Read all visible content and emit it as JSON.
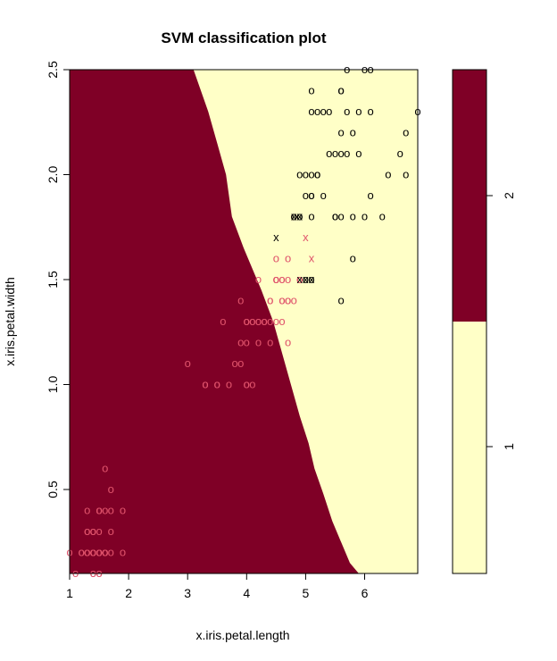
{
  "chart_data": {
    "type": "scatter",
    "title": "SVM classification plot",
    "xlabel": "x.iris.petal.length",
    "ylabel": "x.iris.petal.width",
    "xlim": [
      1.0,
      6.9
    ],
    "ylim": [
      0.1,
      2.5
    ],
    "x_ticks": [
      "1",
      "2",
      "3",
      "4",
      "5",
      "6"
    ],
    "y_ticks": [
      "0.5",
      "1.0",
      "1.5",
      "2.0",
      "2.5"
    ],
    "grid": false,
    "colors": {
      "class_2_region": "#7f0026",
      "class_1_region": "#ffffc7",
      "class_2_points": "#df536b",
      "class_1_points": "#000000"
    },
    "decision_boundary": [
      [
        3.1,
        2.5
      ],
      [
        3.35,
        2.3
      ],
      [
        3.5,
        2.15
      ],
      [
        3.65,
        2.0
      ],
      [
        3.75,
        1.8
      ],
      [
        3.95,
        1.65
      ],
      [
        4.1,
        1.55
      ],
      [
        4.25,
        1.45
      ],
      [
        4.45,
        1.3
      ],
      [
        4.6,
        1.15
      ],
      [
        4.75,
        1.0
      ],
      [
        4.9,
        0.85
      ],
      [
        5.05,
        0.72
      ],
      [
        5.15,
        0.6
      ],
      [
        5.3,
        0.48
      ],
      [
        5.45,
        0.35
      ],
      [
        5.6,
        0.25
      ],
      [
        5.75,
        0.15
      ],
      [
        5.9,
        0.1
      ]
    ],
    "legend": {
      "levels": [
        "1",
        "2"
      ]
    },
    "series": [
      {
        "class": "2",
        "color": "#df536b",
        "points": [
          [
            1.4,
            0.2
          ],
          [
            1.4,
            0.2
          ],
          [
            1.3,
            0.2
          ],
          [
            1.5,
            0.2
          ],
          [
            1.4,
            0.2
          ],
          [
            1.7,
            0.4
          ],
          [
            1.4,
            0.3
          ],
          [
            1.5,
            0.2
          ],
          [
            1.4,
            0.2
          ],
          [
            1.5,
            0.1
          ],
          [
            1.5,
            0.2
          ],
          [
            1.6,
            0.2
          ],
          [
            1.4,
            0.1
          ],
          [
            1.1,
            0.1
          ],
          [
            1.2,
            0.2
          ],
          [
            1.5,
            0.4
          ],
          [
            1.3,
            0.4
          ],
          [
            1.4,
            0.3
          ],
          [
            1.7,
            0.3
          ],
          [
            1.5,
            0.3
          ],
          [
            1.7,
            0.2
          ],
          [
            1.5,
            0.4
          ],
          [
            1.0,
            0.2
          ],
          [
            1.7,
            0.5
          ],
          [
            1.9,
            0.2
          ],
          [
            1.6,
            0.2
          ],
          [
            1.6,
            0.4
          ],
          [
            1.5,
            0.2
          ],
          [
            1.4,
            0.2
          ],
          [
            1.6,
            0.2
          ],
          [
            1.6,
            0.2
          ],
          [
            1.5,
            0.4
          ],
          [
            1.5,
            0.1
          ],
          [
            1.4,
            0.2
          ],
          [
            1.5,
            0.2
          ],
          [
            1.2,
            0.2
          ],
          [
            1.3,
            0.2
          ],
          [
            1.4,
            0.1
          ],
          [
            1.3,
            0.2
          ],
          [
            1.5,
            0.2
          ],
          [
            1.3,
            0.3
          ],
          [
            1.3,
            0.3
          ],
          [
            1.3,
            0.2
          ],
          [
            1.6,
            0.6
          ],
          [
            1.9,
            0.4
          ],
          [
            1.4,
            0.3
          ],
          [
            1.6,
            0.2
          ],
          [
            1.4,
            0.2
          ],
          [
            1.5,
            0.2
          ],
          [
            1.4,
            0.2
          ],
          [
            4.7,
            1.4
          ],
          [
            4.5,
            1.5
          ],
          [
            4.6,
            1.5
          ],
          [
            4.0,
            1.3
          ],
          [
            4.6,
            1.5
          ],
          [
            4.5,
            1.3
          ],
          [
            4.7,
            1.6
          ],
          [
            3.3,
            1.0
          ],
          [
            4.6,
            1.3
          ],
          [
            3.9,
            1.4
          ],
          [
            3.5,
            1.0
          ],
          [
            4.2,
            1.5
          ],
          [
            4.0,
            1.0
          ],
          [
            4.7,
            1.4
          ],
          [
            3.6,
            1.3
          ],
          [
            4.4,
            1.4
          ],
          [
            4.5,
            1.5
          ],
          [
            4.1,
            1.0
          ],
          [
            4.5,
            1.5
          ],
          [
            3.9,
            1.1
          ],
          [
            4.0,
            1.3
          ],
          [
            4.9,
            1.5
          ],
          [
            4.7,
            1.2
          ],
          [
            4.3,
            1.3
          ],
          [
            4.4,
            1.4
          ],
          [
            4.8,
            1.4
          ],
          [
            4.5,
            1.5
          ],
          [
            3.5,
            1.0
          ],
          [
            3.8,
            1.1
          ],
          [
            3.7,
            1.0
          ],
          [
            3.9,
            1.2
          ],
          [
            4.5,
            1.6
          ],
          [
            4.7,
            1.5
          ],
          [
            4.4,
            1.3
          ],
          [
            4.1,
            1.3
          ],
          [
            4.0,
            1.3
          ],
          [
            4.4,
            1.2
          ],
          [
            4.6,
            1.4
          ],
          [
            4.0,
            1.2
          ],
          [
            3.3,
            1.0
          ],
          [
            4.2,
            1.3
          ],
          [
            4.2,
            1.2
          ],
          [
            4.2,
            1.3
          ],
          [
            4.3,
            1.3
          ],
          [
            3.0,
            1.1
          ],
          [
            4.1,
            1.3
          ],
          [
            4.8,
            1.8
          ],
          [
            4.9,
            1.5
          ],
          [
            4.6,
            1.4
          ],
          [
            4.5,
            1.5
          ],
          [
            4.3,
            1.3
          ],
          [
            4.0,
            1.0
          ],
          [
            4.9,
            1.5
          ]
        ],
        "support_vectors": [
          [
            5.0,
            1.7
          ],
          [
            5.1,
            1.6
          ]
        ]
      },
      {
        "class": "1",
        "color": "#000000",
        "points": [
          [
            6.0,
            2.5
          ],
          [
            5.1,
            1.9
          ],
          [
            5.9,
            2.1
          ],
          [
            5.6,
            1.8
          ],
          [
            5.8,
            2.2
          ],
          [
            6.6,
            2.1
          ],
          [
            6.3,
            1.8
          ],
          [
            5.8,
            1.8
          ],
          [
            6.1,
            2.5
          ],
          [
            5.1,
            2.0
          ],
          [
            5.3,
            1.9
          ],
          [
            5.5,
            2.1
          ],
          [
            5.0,
            2.0
          ],
          [
            5.1,
            2.4
          ],
          [
            5.3,
            2.3
          ],
          [
            5.5,
            1.8
          ],
          [
            6.7,
            2.2
          ],
          [
            6.9,
            2.3
          ],
          [
            5.0,
            1.5
          ],
          [
            5.7,
            2.3
          ],
          [
            4.9,
            2.0
          ],
          [
            6.7,
            2.0
          ],
          [
            4.9,
            1.8
          ],
          [
            5.7,
            2.1
          ],
          [
            6.0,
            1.8
          ],
          [
            4.8,
            1.8
          ],
          [
            4.9,
            1.8
          ],
          [
            5.6,
            2.1
          ],
          [
            5.8,
            1.6
          ],
          [
            6.1,
            1.9
          ],
          [
            6.4,
            2.0
          ],
          [
            5.6,
            2.2
          ],
          [
            5.1,
            1.5
          ],
          [
            5.6,
            1.4
          ],
          [
            6.1,
            2.3
          ],
          [
            5.6,
            2.4
          ],
          [
            5.5,
            1.8
          ],
          [
            4.8,
            1.8
          ],
          [
            5.4,
            2.1
          ],
          [
            5.6,
            2.4
          ],
          [
            5.1,
            2.3
          ],
          [
            5.1,
            1.9
          ],
          [
            5.9,
            2.3
          ],
          [
            5.7,
            2.5
          ],
          [
            5.2,
            2.3
          ],
          [
            5.0,
            1.9
          ],
          [
            5.2,
            2.0
          ],
          [
            5.4,
            2.3
          ],
          [
            5.1,
            1.8
          ],
          [
            5.2,
            2.0
          ]
        ],
        "support_vectors": [
          [
            4.5,
            1.7
          ],
          [
            4.8,
            1.8
          ],
          [
            4.9,
            1.8
          ],
          [
            5.0,
            1.5
          ],
          [
            4.9,
            1.5
          ],
          [
            5.1,
            1.5
          ]
        ]
      }
    ]
  }
}
